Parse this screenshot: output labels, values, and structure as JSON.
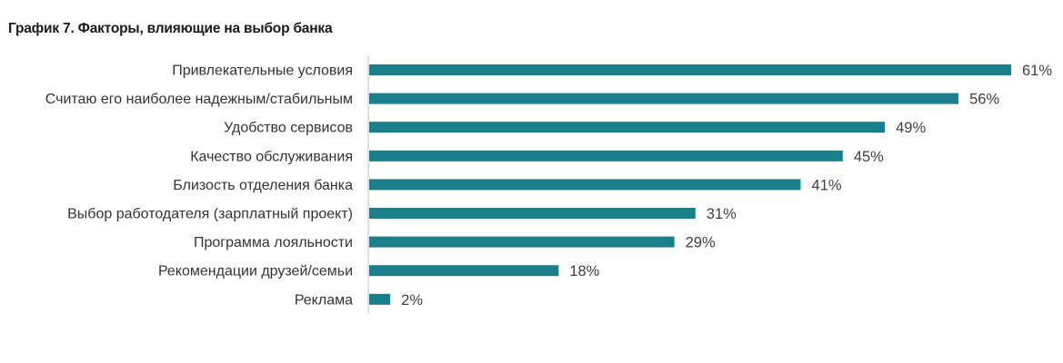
{
  "chart_data": {
    "type": "bar",
    "orientation": "horizontal",
    "title": "График 7. Факторы, влияющие на выбор банка",
    "categories": [
      "Привлекательные условия",
      "Считаю его наиболее надежным/стабильным",
      "Удобство сервисов",
      "Качество обслуживания",
      "Близость отделения банка",
      "Выбор работодателя (зарплатный проект)",
      "Программа лояльности",
      "Рекомендации друзей/семьи",
      "Реклама"
    ],
    "values": [
      61,
      56,
      49,
      45,
      41,
      31,
      29,
      18,
      2
    ],
    "value_labels": [
      "61%",
      "56%",
      "49%",
      "45%",
      "41%",
      "31%",
      "29%",
      "18%",
      "2%"
    ],
    "unit": "%",
    "xlim": [
      0,
      61
    ],
    "grid": false,
    "legend": "none",
    "bar_color": "#1a7f8a",
    "axis_color": "#bfbfbf"
  }
}
